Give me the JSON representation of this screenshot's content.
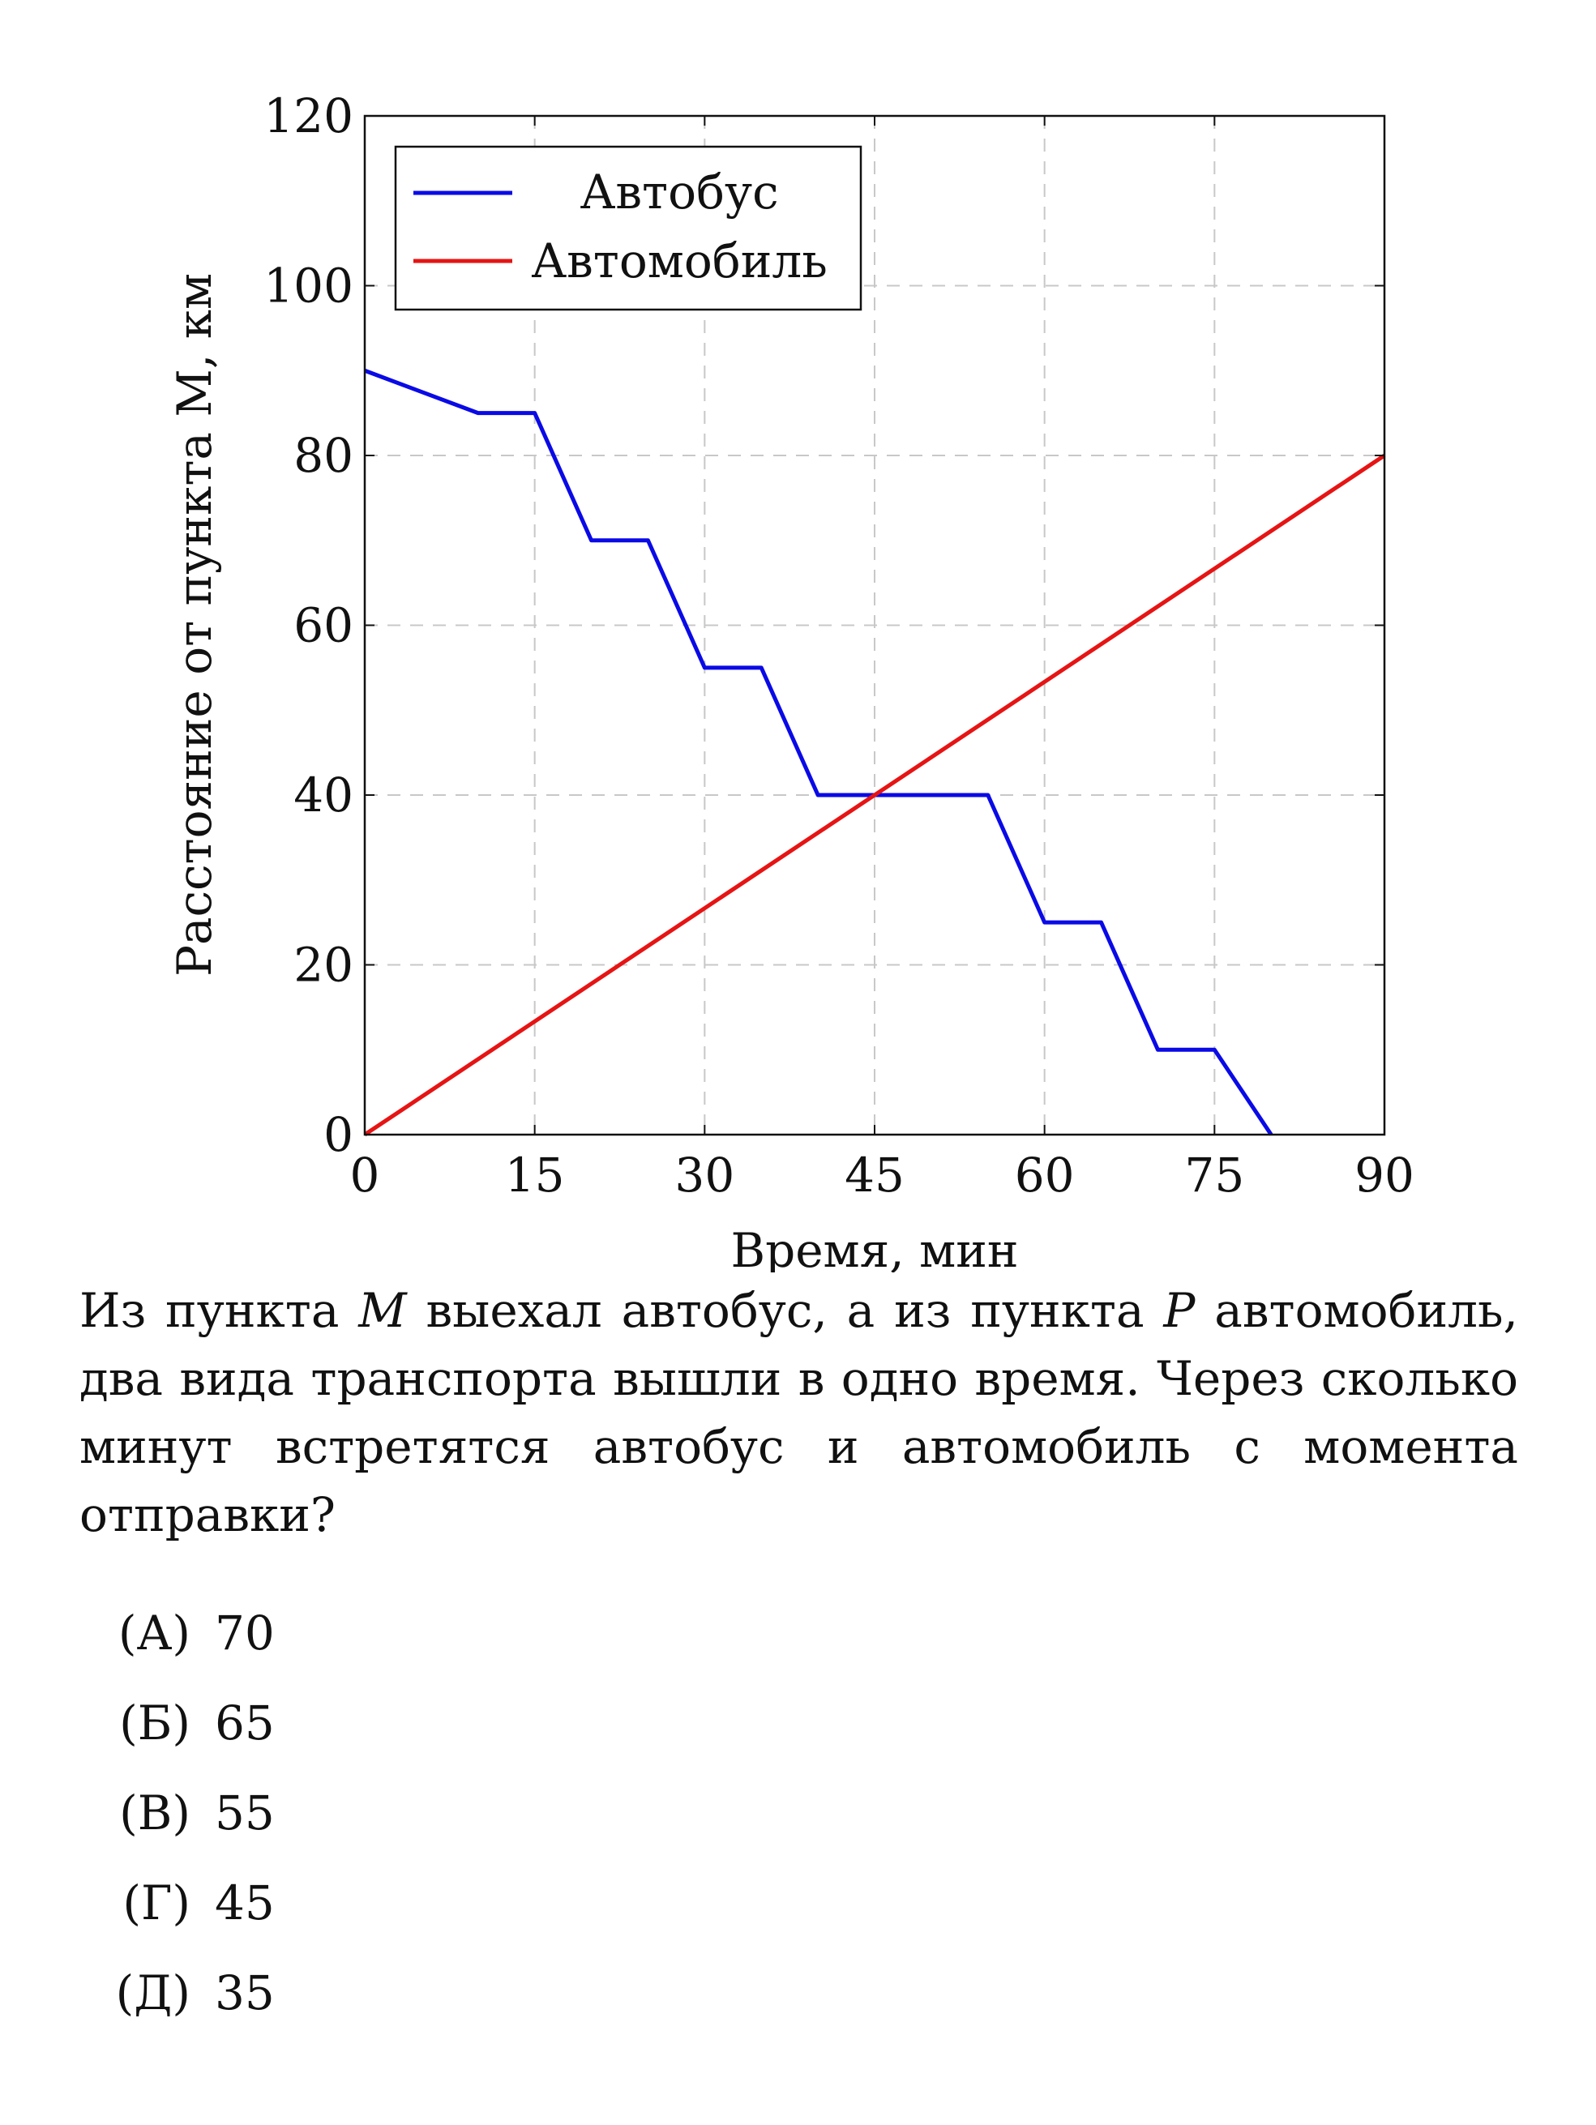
{
  "chart_data": {
    "type": "line",
    "xlabel": "Время, мин",
    "ylabel": "Расстояние от пункта М, км",
    "xlim": [
      0,
      90
    ],
    "ylim": [
      0,
      120
    ],
    "xticks": [
      0,
      15,
      30,
      45,
      60,
      75,
      90
    ],
    "yticks": [
      0,
      20,
      40,
      60,
      80,
      100,
      120
    ],
    "grid": true,
    "legend_position": "top-left",
    "series": [
      {
        "name": "Автобус",
        "color": "#0a0ae6",
        "x": [
          0,
          10,
          15,
          20,
          25,
          30,
          35,
          40,
          45,
          55,
          60,
          65,
          70,
          75,
          80
        ],
        "y": [
          90,
          85,
          85,
          70,
          70,
          55,
          55,
          40,
          40,
          40,
          25,
          25,
          10,
          10,
          0
        ]
      },
      {
        "name": "Автомобиль",
        "color": "#e61414",
        "x": [
          0,
          90
        ],
        "y": [
          0,
          80
        ]
      }
    ]
  },
  "question": {
    "part1": "Из пункта ",
    "var_m": "M",
    "part2": " выехал автобус, а из пункта ",
    "var_p": "P",
    "part3": " автомобиль, два вида транспорта вышли в одно время. Через сколько минут встретятся автобус и автомобиль с момента отправки?"
  },
  "options": [
    {
      "letter": "(А)",
      "value": "70"
    },
    {
      "letter": "(Б)",
      "value": "65"
    },
    {
      "letter": "(В)",
      "value": "55"
    },
    {
      "letter": "(Г)",
      "value": "45"
    },
    {
      "letter": "(Д)",
      "value": "35"
    }
  ]
}
